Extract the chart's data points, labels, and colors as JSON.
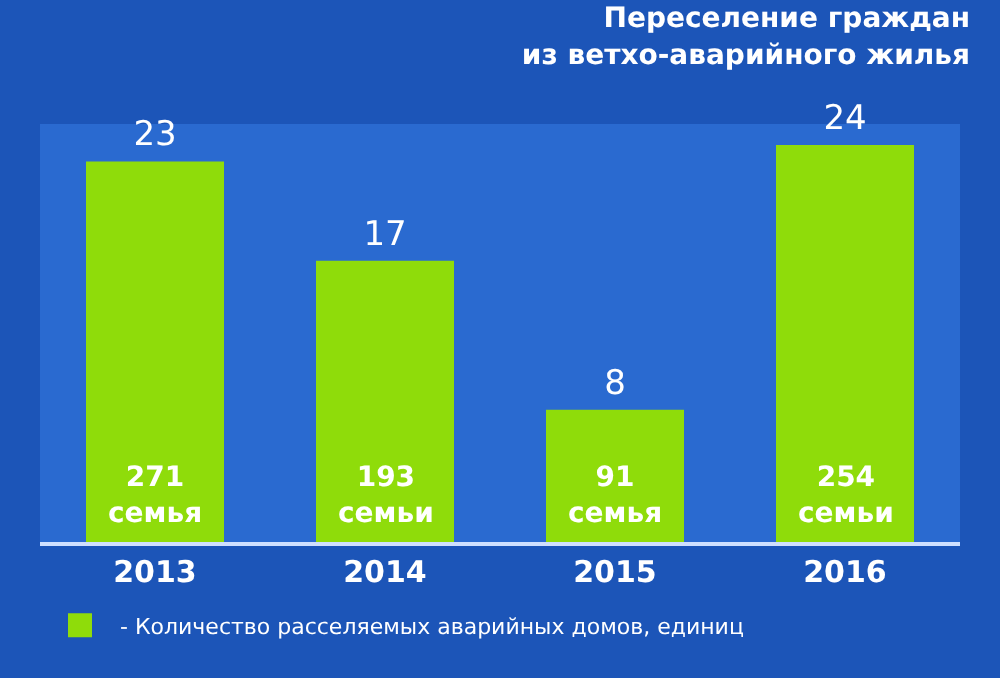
{
  "chart_data": {
    "type": "bar",
    "title": "Переселение граждан\nиз ветхо-аварийного жилья",
    "categories": [
      "2013",
      "2014",
      "2015",
      "2016"
    ],
    "series": [
      {
        "name": "- Количество расселяемых аварийных домов, единиц",
        "color": "#8fdc0a",
        "values": [
          23,
          17,
          8,
          24
        ]
      }
    ],
    "data_labels": true,
    "legend": "bottom",
    "grid": false,
    "annotations": [
      "271\nсемья",
      "193\nсемьи",
      "91\nсемья",
      "254\nсемьи"
    ]
  }
}
